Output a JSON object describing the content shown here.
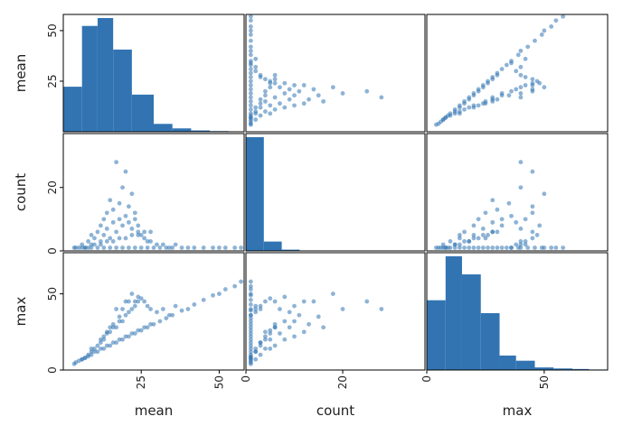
{
  "chart_data": {
    "type": "scatter_matrix",
    "variables": [
      "mean",
      "count",
      "max"
    ],
    "colors": {
      "marks": "#3274b2",
      "frame": "#000000",
      "text": "#222222"
    },
    "ranges": {
      "mean": [
        0,
        58
      ],
      "count": [
        0,
        37
      ],
      "max": [
        0,
        77
      ]
    },
    "ticks": {
      "mean": {
        "row": [
          25,
          50
        ],
        "col": [
          25,
          50
        ]
      },
      "count": {
        "row": [
          0,
          20
        ],
        "col": [
          0,
          20
        ]
      },
      "max": {
        "row": [
          0,
          50
        ],
        "col": [
          0,
          50
        ]
      }
    },
    "diagonal": "hist",
    "histograms": {
      "mean": {
        "bin_edges": [
          0,
          6,
          11,
          16,
          22,
          29,
          35,
          41,
          47,
          53,
          58
        ],
        "counts": [
          200,
          470,
          505,
          365,
          165,
          35,
          15,
          6,
          3,
          2
        ]
      },
      "count": {
        "bin_edges": [
          0,
          3.7,
          7.4,
          11.1,
          14.8,
          18.5,
          22.2,
          25.9,
          29.6,
          33.3,
          37
        ],
        "counts": [
          730,
          60,
          8,
          3,
          1,
          0,
          0,
          0,
          0,
          0
        ]
      },
      "max": {
        "bin_edges": [
          0,
          8,
          15,
          23,
          31,
          38,
          46,
          54,
          62,
          69,
          77
        ],
        "counts": [
          135,
          220,
          185,
          110,
          28,
          18,
          5,
          3,
          2,
          1
        ]
      }
    },
    "points": {
      "mean": [
        3.5,
        5,
        6,
        7,
        8,
        9,
        9,
        10,
        11,
        12,
        12,
        13,
        13,
        14,
        14,
        15,
        15,
        16,
        16,
        17,
        17,
        18,
        18,
        19,
        19,
        20,
        20,
        21,
        21,
        22,
        22,
        23,
        23,
        24,
        24,
        25,
        26,
        27,
        28,
        30,
        32,
        34,
        36,
        40,
        45,
        50,
        55,
        4,
        6,
        8,
        10,
        12,
        14,
        16,
        18,
        20,
        22,
        24,
        26,
        28,
        7,
        9,
        11,
        13,
        15,
        17,
        19,
        21,
        23,
        25,
        27,
        29,
        31,
        33,
        35,
        38,
        42,
        48,
        52,
        57
      ],
      "count": [
        1,
        1,
        2,
        1,
        3,
        2,
        5,
        4,
        6,
        3,
        8,
        5,
        10,
        7,
        12,
        4,
        16,
        9,
        13,
        6,
        28,
        10,
        15,
        8,
        20,
        11,
        25,
        9,
        14,
        7,
        18,
        10,
        12,
        6,
        8,
        5,
        4,
        3,
        3,
        2,
        2,
        1,
        2,
        1,
        1,
        1,
        1,
        1,
        1,
        1,
        2,
        2,
        3,
        3,
        4,
        4,
        5,
        5,
        6,
        6,
        1,
        1,
        1,
        1,
        1,
        1,
        1,
        1,
        1,
        1,
        1,
        1,
        1,
        1,
        1,
        1,
        1,
        1,
        1,
        1
      ],
      "max": [
        4,
        6,
        7,
        8,
        10,
        12,
        14,
        14,
        16,
        18,
        20,
        20,
        22,
        24,
        25,
        25,
        28,
        28,
        30,
        28,
        40,
        32,
        35,
        32,
        40,
        36,
        45,
        38,
        45,
        40,
        50,
        42,
        45,
        45,
        48,
        47,
        45,
        42,
        40,
        38,
        40,
        36,
        42,
        40,
        46,
        50,
        55,
        5,
        7,
        9,
        12,
        14,
        16,
        18,
        20,
        22,
        24,
        26,
        28,
        30,
        8,
        10,
        12,
        14,
        16,
        18,
        20,
        22,
        24,
        26,
        28,
        30,
        32,
        34,
        36,
        39,
        43,
        49,
        53,
        58
      ]
    },
    "xlabel": [
      "mean",
      "count",
      "max"
    ],
    "ylabel": [
      "mean",
      "count",
      "max"
    ]
  }
}
